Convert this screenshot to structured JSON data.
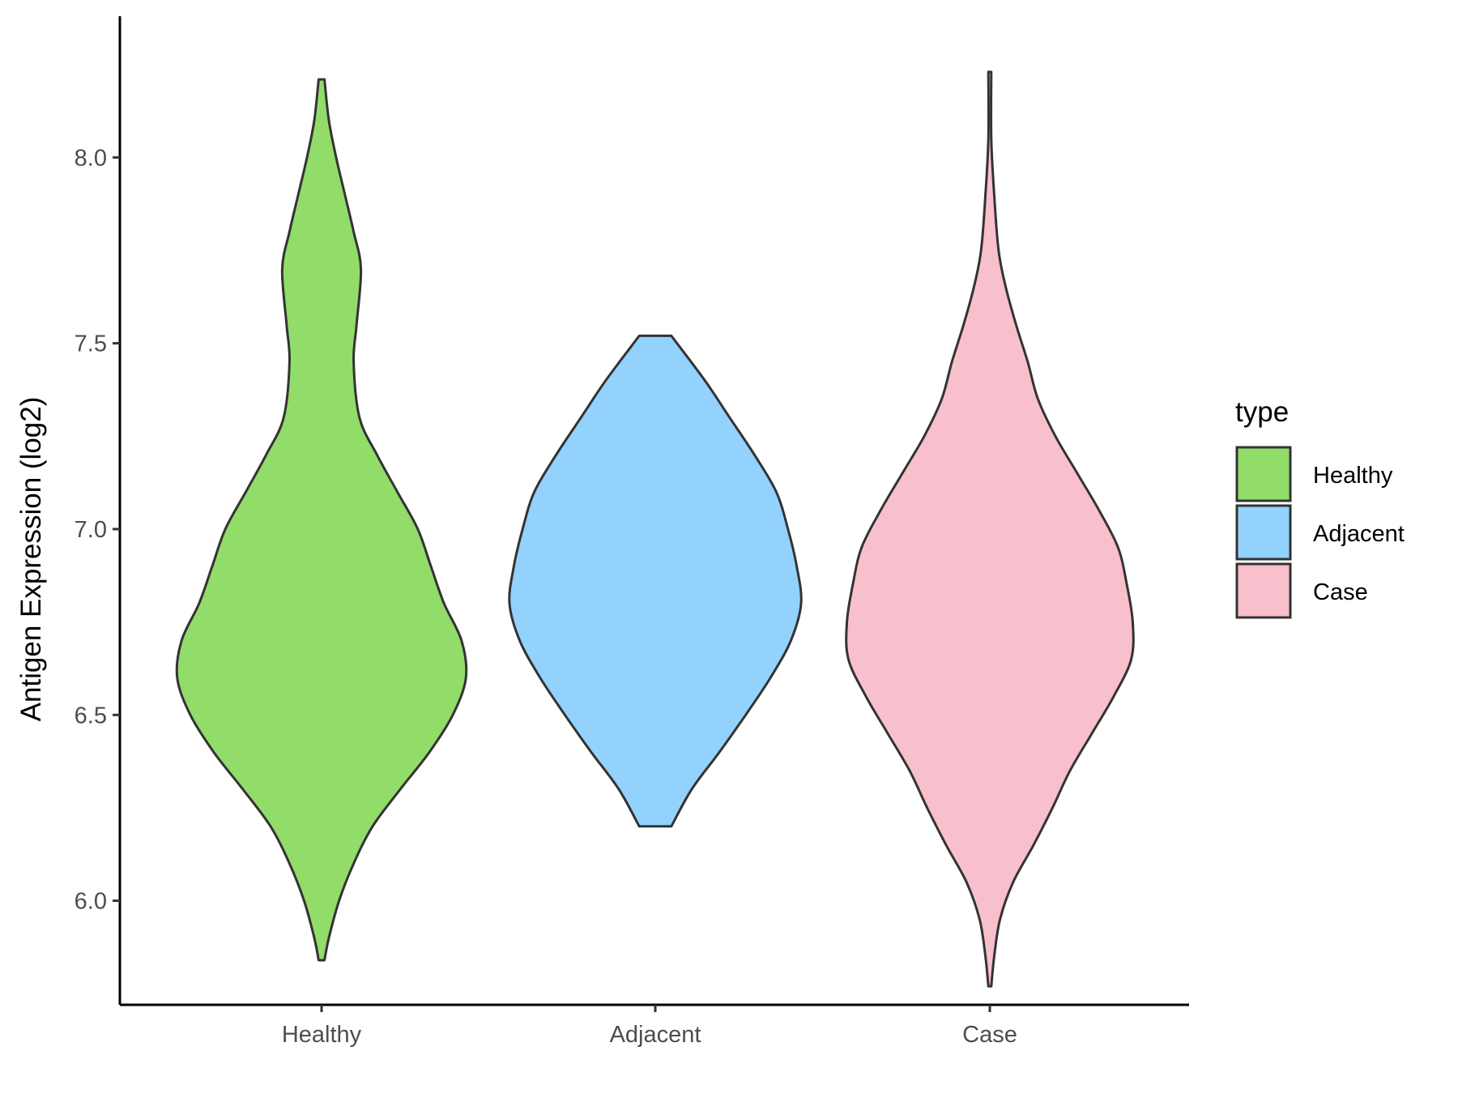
{
  "chart_data": {
    "type": "violin",
    "title": "",
    "xlabel": "",
    "ylabel": "Antigen Expression (log2)",
    "ylim": [
      5.72,
      8.38
    ],
    "yticks": [
      "6.0",
      "6.5",
      "7.0",
      "7.5",
      "8.0"
    ],
    "categories": [
      "Healthy",
      "Adjacent",
      "Case"
    ],
    "grid": false,
    "legend": {
      "title": "type",
      "position": "right",
      "items": [
        {
          "label": "Healthy",
          "color": "#92dc6a"
        },
        {
          "label": "Adjacent",
          "color": "#92d2fd"
        },
        {
          "label": "Case",
          "color": "#f8c0cc"
        }
      ]
    },
    "series": [
      {
        "category": "Healthy",
        "color": "#92dc6a",
        "min": 5.84,
        "max": 8.21,
        "density": [
          [
            5.84,
            0.02
          ],
          [
            5.9,
            0.05
          ],
          [
            6.0,
            0.12
          ],
          [
            6.1,
            0.22
          ],
          [
            6.2,
            0.35
          ],
          [
            6.3,
            0.54
          ],
          [
            6.4,
            0.74
          ],
          [
            6.5,
            0.9
          ],
          [
            6.6,
            0.99
          ],
          [
            6.7,
            0.96
          ],
          [
            6.8,
            0.84
          ],
          [
            6.9,
            0.75
          ],
          [
            7.0,
            0.66
          ],
          [
            7.1,
            0.52
          ],
          [
            7.2,
            0.38
          ],
          [
            7.3,
            0.26
          ],
          [
            7.45,
            0.22
          ],
          [
            7.55,
            0.24
          ],
          [
            7.7,
            0.27
          ],
          [
            7.8,
            0.22
          ],
          [
            7.9,
            0.16
          ],
          [
            8.0,
            0.1
          ],
          [
            8.1,
            0.05
          ],
          [
            8.21,
            0.02
          ]
        ]
      },
      {
        "category": "Adjacent",
        "color": "#92d2fd",
        "min": 6.2,
        "max": 7.52,
        "density": [
          [
            6.2,
            0.11
          ],
          [
            6.3,
            0.25
          ],
          [
            6.4,
            0.44
          ],
          [
            6.5,
            0.62
          ],
          [
            6.6,
            0.79
          ],
          [
            6.7,
            0.93
          ],
          [
            6.8,
            1.0
          ],
          [
            6.9,
            0.97
          ],
          [
            7.0,
            0.91
          ],
          [
            7.1,
            0.83
          ],
          [
            7.2,
            0.68
          ],
          [
            7.3,
            0.51
          ],
          [
            7.4,
            0.34
          ],
          [
            7.52,
            0.11
          ]
        ]
      },
      {
        "category": "Case",
        "color": "#f8c0cc",
        "min": 5.77,
        "max": 8.23,
        "density": [
          [
            5.77,
            0.01
          ],
          [
            5.85,
            0.03
          ],
          [
            5.95,
            0.07
          ],
          [
            6.05,
            0.16
          ],
          [
            6.15,
            0.3
          ],
          [
            6.25,
            0.43
          ],
          [
            6.35,
            0.55
          ],
          [
            6.45,
            0.7
          ],
          [
            6.55,
            0.85
          ],
          [
            6.65,
            0.97
          ],
          [
            6.75,
            0.98
          ],
          [
            6.85,
            0.94
          ],
          [
            6.95,
            0.88
          ],
          [
            7.05,
            0.75
          ],
          [
            7.15,
            0.6
          ],
          [
            7.25,
            0.45
          ],
          [
            7.35,
            0.33
          ],
          [
            7.45,
            0.26
          ],
          [
            7.55,
            0.18
          ],
          [
            7.65,
            0.11
          ],
          [
            7.75,
            0.06
          ],
          [
            7.9,
            0.03
          ],
          [
            8.05,
            0.01
          ],
          [
            8.23,
            0.01
          ]
        ]
      }
    ]
  }
}
